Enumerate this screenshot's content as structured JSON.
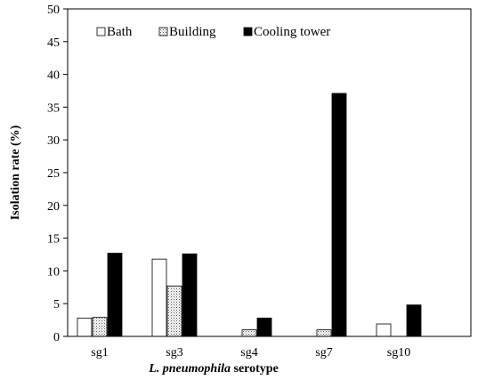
{
  "chart_data": {
    "type": "bar",
    "title": "",
    "xlabel_italic": "L. pneumophila",
    "xlabel_rest": " serotype",
    "ylabel": "Isolation rate (%)",
    "ylim": [
      0,
      50
    ],
    "ytick_step": 5,
    "categories": [
      "sg1",
      "sg3",
      "sg4",
      "sg7",
      "sg10"
    ],
    "series": [
      {
        "name": "Bath",
        "values": [
          2.8,
          11.8,
          0,
          0,
          1.9
        ]
      },
      {
        "name": "Building",
        "values": [
          2.9,
          7.7,
          1.0,
          1.0,
          0
        ]
      },
      {
        "name": "Cooling tower",
        "values": [
          12.7,
          12.6,
          2.8,
          37.1,
          4.8
        ]
      }
    ],
    "grid": false,
    "legend_position": "top-left"
  }
}
